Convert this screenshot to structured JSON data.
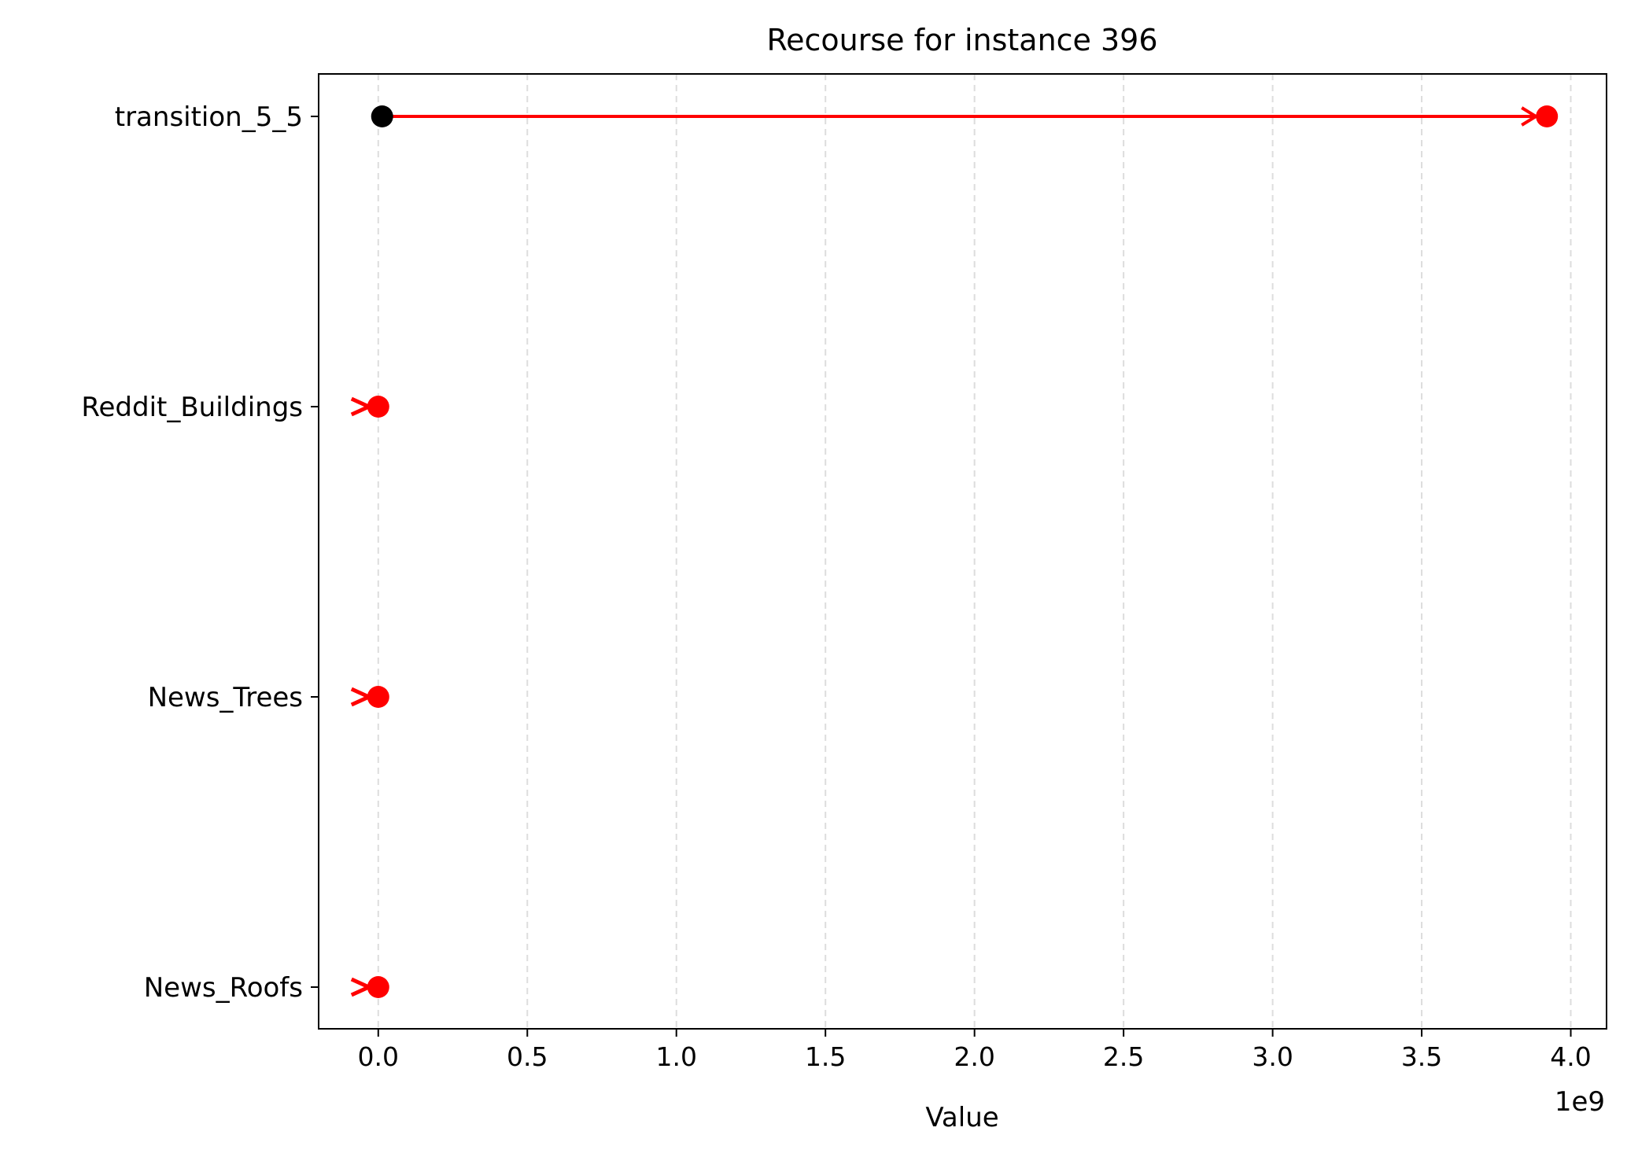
{
  "chart_data": {
    "type": "scatter",
    "title": "Recourse for instance 396",
    "xlabel": "Value",
    "ylabel": "",
    "x_offset_label": "1e9",
    "x_scale": 1000000000,
    "xlim": [
      -0.2,
      4.12
    ],
    "xticks": [
      0.0,
      0.5,
      1.0,
      1.5,
      2.0,
      2.5,
      3.0,
      3.5,
      4.0
    ],
    "xtick_labels": [
      "0.0",
      "0.5",
      "1.0",
      "1.5",
      "2.0",
      "2.5",
      "3.0",
      "3.5",
      "4.0"
    ],
    "grid": "x-dashed",
    "categories": [
      "transition_5_5",
      "Reddit_Buildings",
      "News_Trees",
      "News_Roofs"
    ],
    "points": [
      {
        "feature": "transition_5_5",
        "original": 0.013,
        "counterfactual": 3.92
      },
      {
        "feature": "Reddit_Buildings",
        "original": 0.0,
        "counterfactual": 0.0
      },
      {
        "feature": "News_Trees",
        "original": 0.0,
        "counterfactual": 0.0
      },
      {
        "feature": "News_Roofs",
        "original": 0.0,
        "counterfactual": 0.0
      }
    ],
    "colors": {
      "original": "#000000",
      "counterfactual": "#ff0000",
      "arrow": "#ff0000",
      "grid": "#dddddd"
    }
  }
}
